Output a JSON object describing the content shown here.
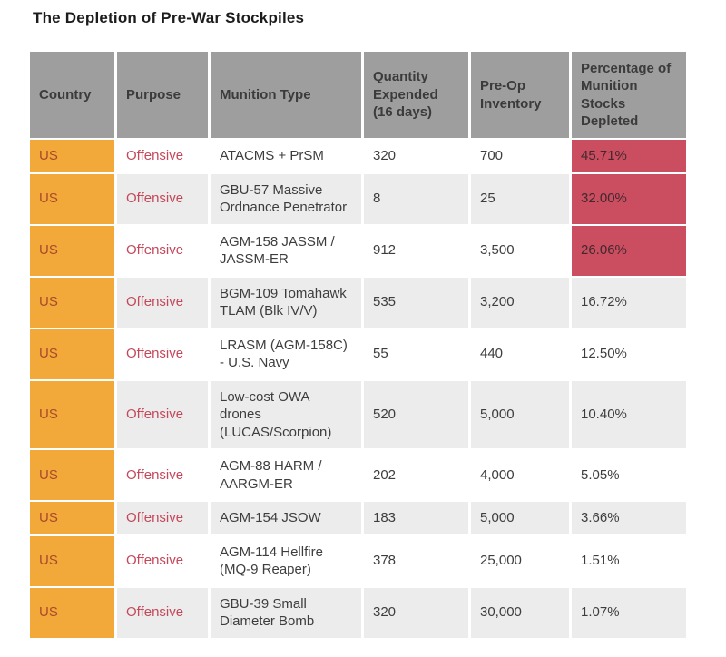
{
  "title": "The Depletion of Pre-War Stockpiles",
  "colors": {
    "header_bg": "#9e9e9e",
    "header_text": "#3b3b3b",
    "body_text": "#3d3d3d",
    "row_alt_bg": "#ececec",
    "country_bg": "#f3a93a",
    "country_text": "#a84a2b",
    "purpose_text": "#c4485a",
    "highlight_bg": "#ca4d60",
    "highlight_text": "#40292e"
  },
  "chart_data": {
    "type": "table",
    "title": "The Depletion of Pre-War Stockpiles",
    "columns": [
      "Country",
      "Purpose",
      "Munition Type",
      "Quantity Expended (16 days)",
      "Pre-Op Inventory",
      "Percentage of Munition Stocks Depleted"
    ],
    "rows": [
      {
        "country": "US",
        "purpose": "Offensive",
        "munition_type": "ATACMS + PrSM",
        "quantity_expended": "320",
        "pre_op_inventory": "700",
        "pct_depleted": "45.71%",
        "highlighted": true
      },
      {
        "country": "US",
        "purpose": "Offensive",
        "munition_type": "GBU-57 Massive Ordnance Penetrator",
        "quantity_expended": "8",
        "pre_op_inventory": "25",
        "pct_depleted": "32.00%",
        "highlighted": true
      },
      {
        "country": "US",
        "purpose": "Offensive",
        "munition_type": "AGM-158 JASSM / JASSM-ER",
        "quantity_expended": "912",
        "pre_op_inventory": "3,500",
        "pct_depleted": "26.06%",
        "highlighted": true
      },
      {
        "country": "US",
        "purpose": "Offensive",
        "munition_type": "BGM-109 Tomahawk TLAM (Blk IV/V)",
        "quantity_expended": "535",
        "pre_op_inventory": "3,200",
        "pct_depleted": "16.72%",
        "highlighted": false
      },
      {
        "country": "US",
        "purpose": "Offensive",
        "munition_type": "LRASM (AGM-158C) - U.S. Navy",
        "quantity_expended": "55",
        "pre_op_inventory": "440",
        "pct_depleted": "12.50%",
        "highlighted": false
      },
      {
        "country": "US",
        "purpose": "Offensive",
        "munition_type": "Low-cost OWA drones (LUCAS/Scorpion)",
        "quantity_expended": "520",
        "pre_op_inventory": "5,000",
        "pct_depleted": "10.40%",
        "highlighted": false
      },
      {
        "country": "US",
        "purpose": "Offensive",
        "munition_type": "AGM-88 HARM / AARGM-ER",
        "quantity_expended": "202",
        "pre_op_inventory": "4,000",
        "pct_depleted": "5.05%",
        "highlighted": false
      },
      {
        "country": "US",
        "purpose": "Offensive",
        "munition_type": "AGM-154 JSOW",
        "quantity_expended": "183",
        "pre_op_inventory": "5,000",
        "pct_depleted": "3.66%",
        "highlighted": false
      },
      {
        "country": "US",
        "purpose": "Offensive",
        "munition_type": "AGM-114 Hellfire (MQ-9 Reaper)",
        "quantity_expended": "378",
        "pre_op_inventory": "25,000",
        "pct_depleted": "1.51%",
        "highlighted": false
      },
      {
        "country": "US",
        "purpose": "Offensive",
        "munition_type": "GBU-39 Small Diameter Bomb",
        "quantity_expended": "320",
        "pre_op_inventory": "30,000",
        "pct_depleted": "1.07%",
        "highlighted": false
      }
    ]
  }
}
